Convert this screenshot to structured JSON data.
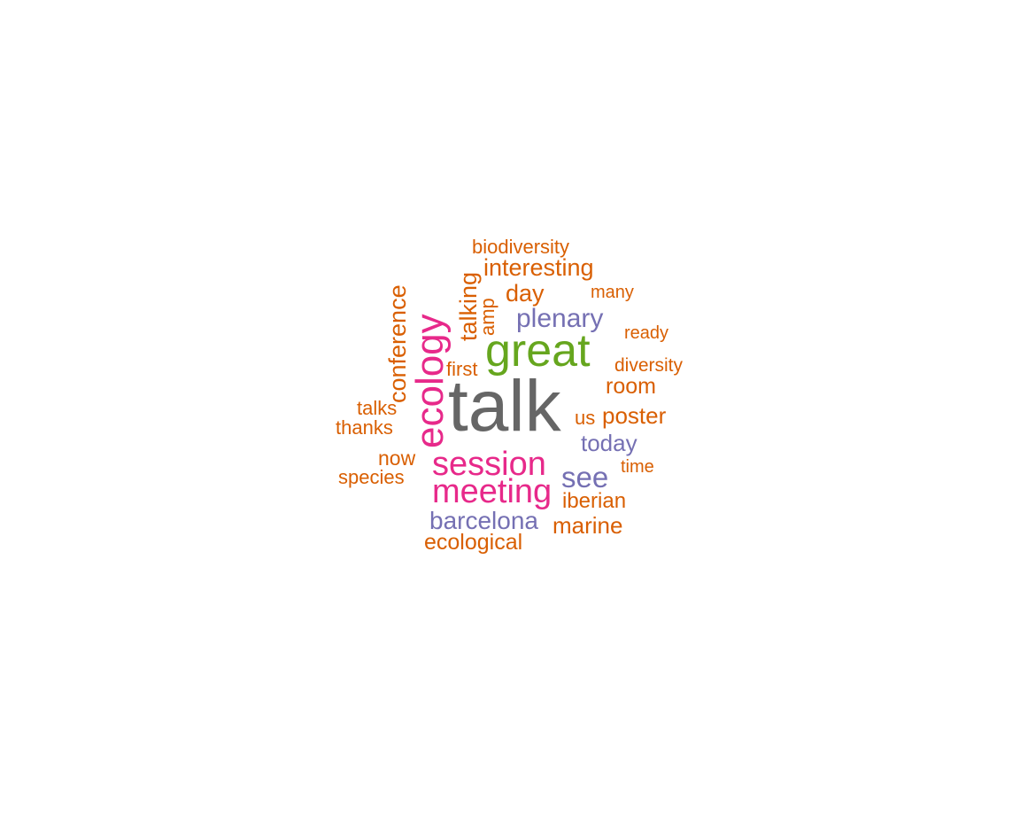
{
  "colors": {
    "gray": "#666666",
    "green": "#66a61e",
    "magenta": "#e7298a",
    "purple": "#7570b3",
    "orange": "#d95f02"
  },
  "words": {
    "talk": {
      "text": "talk",
      "color": "gray"
    },
    "great": {
      "text": "great",
      "color": "green"
    },
    "ecology": {
      "text": "ecology",
      "color": "magenta"
    },
    "session": {
      "text": "session",
      "color": "magenta"
    },
    "meeting": {
      "text": "meeting",
      "color": "magenta"
    },
    "plenary": {
      "text": "plenary",
      "color": "purple"
    },
    "see": {
      "text": "see",
      "color": "purple"
    },
    "barcelona": {
      "text": "barcelona",
      "color": "purple"
    },
    "today": {
      "text": "today",
      "color": "purple"
    },
    "biodiversity": {
      "text": "biodiversity",
      "color": "orange"
    },
    "interesting": {
      "text": "interesting",
      "color": "orange"
    },
    "talking": {
      "text": "talking",
      "color": "orange"
    },
    "amp": {
      "text": "amp",
      "color": "orange"
    },
    "day": {
      "text": "day",
      "color": "orange"
    },
    "many": {
      "text": "many",
      "color": "orange"
    },
    "conference": {
      "text": "conference",
      "color": "orange"
    },
    "ready": {
      "text": "ready",
      "color": "orange"
    },
    "diversity": {
      "text": "diversity",
      "color": "orange"
    },
    "first": {
      "text": "first",
      "color": "orange"
    },
    "room": {
      "text": "room",
      "color": "orange"
    },
    "talks": {
      "text": "talks",
      "color": "orange"
    },
    "thanks": {
      "text": "thanks",
      "color": "orange"
    },
    "us": {
      "text": "us",
      "color": "orange"
    },
    "poster": {
      "text": "poster",
      "color": "orange"
    },
    "now": {
      "text": "now",
      "color": "orange"
    },
    "species": {
      "text": "species",
      "color": "orange"
    },
    "time": {
      "text": "time",
      "color": "orange"
    },
    "iberian": {
      "text": "iberian",
      "color": "orange"
    },
    "marine": {
      "text": "marine",
      "color": "orange"
    },
    "ecological": {
      "text": "ecological",
      "color": "orange"
    }
  }
}
